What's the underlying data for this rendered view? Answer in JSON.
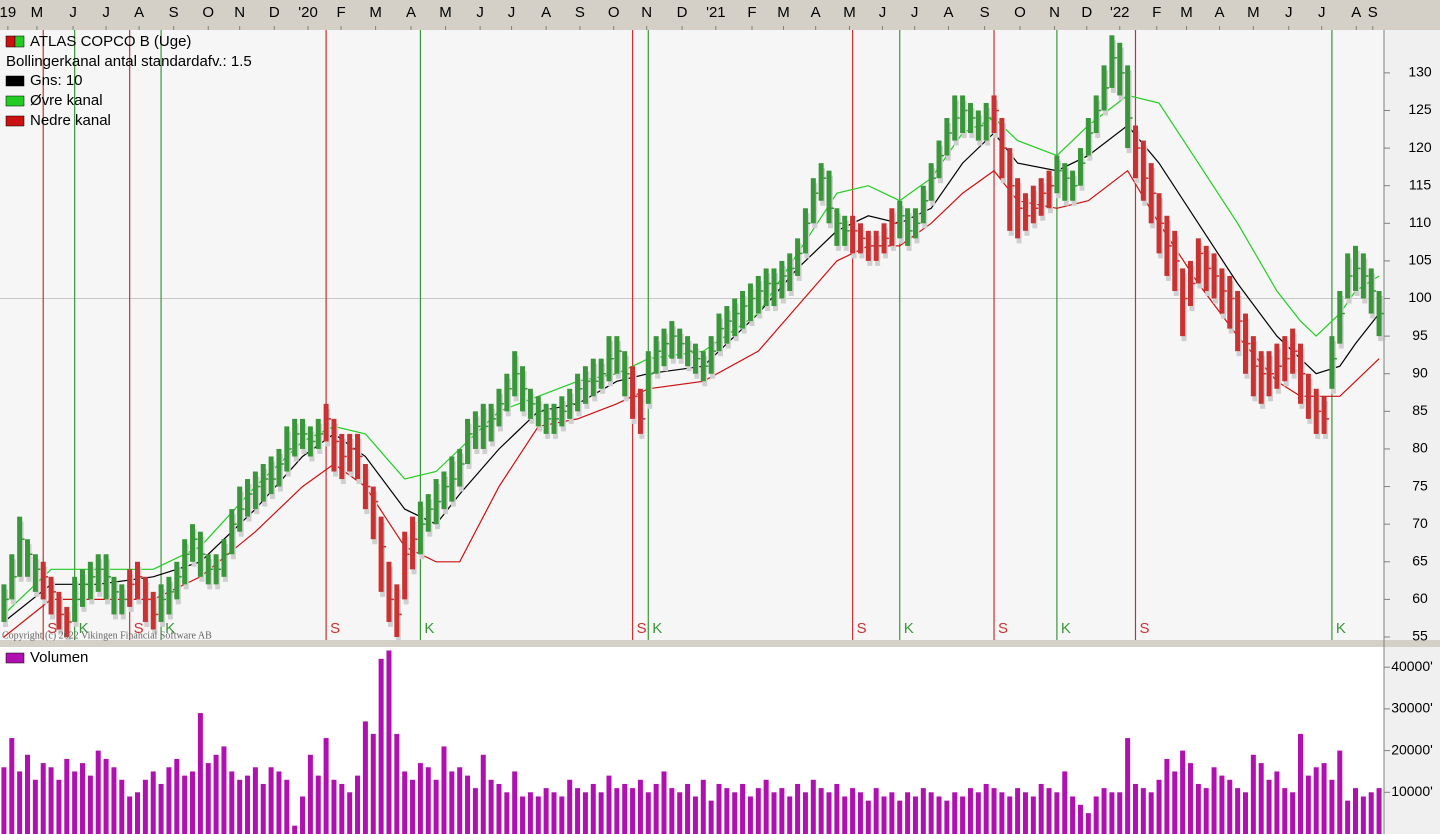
{
  "chart_data": {
    "type": "ohlc",
    "title": "ATLAS COPCO B (Uge)",
    "subtitle": "Bollingerkanal antal standardafv.: 1.5",
    "copyright": "Copyright (c) 2022 Vikingen Financial Software AB",
    "xlim": [
      -0.5,
      175.5
    ],
    "xticks": [
      {
        "value": 0.5,
        "label": "19"
      },
      {
        "value": 4.2,
        "label": "M"
      },
      {
        "value": 8.8,
        "label": "J"
      },
      {
        "value": 13,
        "label": "J"
      },
      {
        "value": 17.2,
        "label": "A"
      },
      {
        "value": 21.6,
        "label": "S"
      },
      {
        "value": 26,
        "label": "O"
      },
      {
        "value": 30,
        "label": "N"
      },
      {
        "value": 34.4,
        "label": "D"
      },
      {
        "value": 38.7,
        "label": "'20"
      },
      {
        "value": 42.9,
        "label": "F"
      },
      {
        "value": 47.3,
        "label": "M"
      },
      {
        "value": 51.8,
        "label": "A"
      },
      {
        "value": 56.2,
        "label": "M"
      },
      {
        "value": 60.6,
        "label": "J"
      },
      {
        "value": 64.6,
        "label": "J"
      },
      {
        "value": 69,
        "label": "A"
      },
      {
        "value": 73.3,
        "label": "S"
      },
      {
        "value": 77.6,
        "label": "O"
      },
      {
        "value": 81.8,
        "label": "N"
      },
      {
        "value": 86.3,
        "label": "D"
      },
      {
        "value": 90.6,
        "label": "'21"
      },
      {
        "value": 95.2,
        "label": "F"
      },
      {
        "value": 99.2,
        "label": "M"
      },
      {
        "value": 103.3,
        "label": "A"
      },
      {
        "value": 107.6,
        "label": "M"
      },
      {
        "value": 111.8,
        "label": "J"
      },
      {
        "value": 115.9,
        "label": "J"
      },
      {
        "value": 120.2,
        "label": "A"
      },
      {
        "value": 124.8,
        "label": "S"
      },
      {
        "value": 129.3,
        "label": "O"
      },
      {
        "value": 133.7,
        "label": "N"
      },
      {
        "value": 137.8,
        "label": "D"
      },
      {
        "value": 142,
        "label": "'22"
      },
      {
        "value": 146.7,
        "label": "F"
      },
      {
        "value": 150.5,
        "label": "M"
      },
      {
        "value": 154.7,
        "label": "A"
      },
      {
        "value": 159,
        "label": "M"
      },
      {
        "value": 163.5,
        "label": "J"
      },
      {
        "value": 167.7,
        "label": "J"
      },
      {
        "value": 172.1,
        "label": "A"
      },
      {
        "value": 174.2,
        "label": "S"
      }
    ],
    "ylim": [
      54.6,
      135.7
    ],
    "yticks": [
      55,
      60,
      65,
      70,
      75,
      80,
      85,
      90,
      95,
      100,
      105,
      110,
      115,
      120,
      125,
      130
    ],
    "reference_line": 100,
    "price": {
      "color": "#3a963a",
      "high": [
        62,
        66,
        71,
        68,
        66,
        65,
        63,
        61,
        59,
        63,
        64,
        65,
        66,
        66,
        63,
        62,
        64,
        65,
        63,
        61,
        62,
        63,
        65,
        68,
        70,
        69,
        66,
        66,
        68,
        72,
        75,
        76,
        77,
        78,
        79,
        80,
        83,
        84,
        84,
        83,
        84,
        86,
        84,
        82,
        82,
        82,
        78,
        75,
        71,
        65,
        62,
        69,
        71,
        73,
        74,
        76,
        77,
        79,
        80,
        84,
        85,
        86,
        86,
        88,
        90,
        93,
        91,
        88,
        87,
        86,
        86,
        87,
        88,
        90,
        91,
        92,
        92,
        95,
        95,
        93,
        91,
        88,
        93,
        95,
        96,
        97,
        96,
        95,
        94,
        93,
        95,
        98,
        99,
        100,
        101,
        102,
        103,
        104,
        104,
        105,
        106,
        108,
        112,
        116,
        118,
        117,
        112,
        111,
        111,
        110,
        109,
        109,
        110,
        112,
        113,
        112,
        112,
        115,
        118,
        121,
        124,
        127,
        127,
        126,
        125,
        126,
        127,
        124,
        120,
        116,
        114,
        115,
        116,
        117,
        119,
        118,
        117,
        120,
        124,
        127,
        131,
        135,
        134,
        131,
        123,
        121,
        118,
        114,
        111,
        109,
        104,
        105,
        108,
        107,
        106,
        104,
        103,
        101,
        98,
        95,
        93,
        93,
        94,
        95,
        96,
        94,
        90,
        88,
        87,
        95,
        101,
        106,
        107,
        106,
        104,
        101
      ],
      "low": [
        57,
        60,
        63,
        63,
        61,
        60,
        58,
        56,
        55,
        57,
        59,
        60,
        61,
        60,
        58,
        58,
        59,
        60,
        57,
        56,
        57,
        58,
        60,
        62,
        65,
        63,
        62,
        62,
        63,
        66,
        69,
        71,
        72,
        73,
        74,
        75,
        77,
        79,
        80,
        79,
        80,
        81,
        77,
        76,
        77,
        76,
        72,
        68,
        61,
        57,
        55,
        60,
        64,
        66,
        69,
        70,
        72,
        73,
        75,
        78,
        80,
        80,
        81,
        83,
        85,
        87,
        85,
        84,
        83,
        82,
        82,
        83,
        84,
        85,
        86,
        87,
        88,
        89,
        90,
        87,
        84,
        82,
        86,
        90,
        91,
        92,
        92,
        91,
        90,
        89,
        90,
        93,
        94,
        95,
        96,
        97,
        98,
        99,
        99,
        100,
        101,
        103,
        106,
        110,
        113,
        110,
        107,
        107,
        106,
        106,
        105,
        105,
        106,
        107,
        108,
        107,
        108,
        110,
        113,
        116,
        119,
        121,
        122,
        122,
        121,
        121,
        122,
        116,
        109,
        108,
        109,
        110,
        111,
        112,
        114,
        113,
        113,
        115,
        119,
        122,
        125,
        128,
        127,
        120,
        116,
        113,
        110,
        106,
        103,
        101,
        95,
        99,
        102,
        101,
        100,
        98,
        96,
        93,
        90,
        87,
        86,
        87,
        88,
        89,
        90,
        86,
        84,
        82,
        82,
        88,
        94,
        100,
        101,
        100,
        98,
        95
      ],
      "close": [
        60,
        63,
        68,
        66,
        64,
        63,
        61,
        58,
        57,
        60,
        62,
        63,
        64,
        63,
        61,
        60,
        62,
        63,
        60,
        58,
        60,
        61,
        63,
        66,
        68,
        66,
        64,
        64,
        66,
        70,
        72,
        74,
        75,
        76,
        76,
        78,
        80,
        82,
        82,
        81,
        82,
        84,
        81,
        79,
        80,
        79,
        75,
        73,
        67,
        60,
        58,
        66,
        68,
        70,
        72,
        73,
        75,
        76,
        78,
        82,
        83,
        83,
        84,
        86,
        88,
        90,
        88,
        86,
        85,
        84,
        84,
        85,
        86,
        88,
        89,
        89,
        90,
        92,
        93,
        90,
        87,
        84,
        90,
        93,
        94,
        95,
        94,
        93,
        92,
        91,
        93,
        96,
        97,
        98,
        99,
        100,
        101,
        102,
        102,
        103,
        104,
        106,
        110,
        114,
        116,
        112,
        110,
        109,
        109,
        108,
        107,
        107,
        108,
        110,
        111,
        109,
        110,
        113,
        116,
        119,
        122,
        124,
        125,
        124,
        123,
        124,
        125,
        120,
        115,
        112,
        111,
        112,
        114,
        115,
        117,
        116,
        115,
        118,
        122,
        125,
        128,
        132,
        130,
        124,
        120,
        116,
        114,
        110,
        107,
        105,
        100,
        102,
        106,
        104,
        103,
        101,
        100,
        97,
        94,
        91,
        90,
        90,
        91,
        92,
        93,
        90,
        87,
        85,
        84,
        92,
        98,
        103,
        104,
        103,
        101,
        98
      ]
    },
    "bands": {
      "x": [
        0,
        6,
        12,
        19,
        25,
        32,
        38,
        42,
        46,
        51,
        55,
        58,
        63,
        68,
        73,
        78,
        82,
        89,
        96,
        101,
        106,
        110,
        114,
        118,
        122,
        126,
        129,
        134,
        138,
        143,
        147,
        152,
        157,
        162,
        165,
        167,
        170,
        172,
        175
      ],
      "series": [
        {
          "name": "Gns: 10",
          "color": "#000000",
          "values": [
            57,
            62,
            62,
            63,
            65,
            72,
            79,
            82,
            79,
            72,
            70,
            74,
            80,
            85,
            86,
            89,
            90,
            91,
            98,
            104,
            109,
            111,
            110,
            112,
            118,
            122,
            118,
            117,
            119,
            123,
            118,
            110,
            102,
            95,
            92,
            90,
            91,
            94,
            98
          ]
        },
        {
          "name": "Øvre kanal",
          "color": "#22cc22",
          "values": [
            58,
            64,
            64,
            64,
            67,
            75,
            81,
            83,
            82,
            76,
            77,
            80,
            85,
            87,
            89,
            90,
            92,
            93,
            98,
            106,
            114,
            115,
            113,
            116,
            122,
            124,
            121,
            119,
            123,
            127,
            126,
            118,
            110,
            101,
            97,
            95,
            98,
            101,
            103
          ]
        },
        {
          "name": "Nedre kanal",
          "color": "#cc1111",
          "values": [
            55,
            60,
            60,
            60,
            63,
            69,
            75,
            78,
            75,
            67,
            65,
            65,
            75,
            83,
            84,
            86,
            88,
            89,
            93,
            99,
            105,
            107,
            107,
            110,
            114,
            117,
            113,
            112,
            113,
            117,
            110,
            102,
            95,
            89,
            87,
            87,
            87,
            89,
            92
          ]
        }
      ]
    },
    "signals": [
      {
        "x": 5,
        "label": "S",
        "color": "#c83232"
      },
      {
        "x": 9,
        "label": "K",
        "color": "#3a963a"
      },
      {
        "x": 16,
        "label": "S",
        "color": "#c83232"
      },
      {
        "x": 20,
        "label": "K",
        "color": "#3a963a"
      },
      {
        "x": 41,
        "label": "S",
        "color": "#c83232"
      },
      {
        "x": 53,
        "label": "K",
        "color": "#3a963a"
      },
      {
        "x": 80,
        "label": "S",
        "color": "#c83232"
      },
      {
        "x": 82,
        "label": "K",
        "color": "#3a963a"
      },
      {
        "x": 108,
        "label": "S",
        "color": "#c83232"
      },
      {
        "x": 114,
        "label": "K",
        "color": "#3a963a"
      },
      {
        "x": 126,
        "label": "S",
        "color": "#c83232"
      },
      {
        "x": 134,
        "label": "K",
        "color": "#3a963a"
      },
      {
        "x": 144,
        "label": "S",
        "color": "#c83232"
      },
      {
        "x": 169,
        "label": "K",
        "color": "#3a963a"
      }
    ],
    "volume": {
      "name": "Volumen",
      "color": "#b010b0",
      "ylim": [
        0,
        44600
      ],
      "yticks": [
        {
          "value": 10000,
          "label": "10000'"
        },
        {
          "value": 20000,
          "label": "20000'"
        },
        {
          "value": 30000,
          "label": "30000'"
        },
        {
          "value": 40000,
          "label": "40000'"
        }
      ],
      "values": [
        16000,
        23000,
        15000,
        19000,
        13000,
        17000,
        16000,
        13000,
        18000,
        15000,
        17000,
        14000,
        20000,
        18000,
        16000,
        13000,
        9000,
        10000,
        13000,
        15000,
        12000,
        16000,
        18000,
        14000,
        15000,
        29000,
        17000,
        19000,
        21000,
        15000,
        13000,
        14000,
        16000,
        12000,
        16000,
        15000,
        13000,
        2000,
        9000,
        19000,
        14000,
        23000,
        13000,
        12000,
        10000,
        14000,
        27000,
        24000,
        42000,
        44000,
        24000,
        15000,
        13000,
        17000,
        16000,
        13000,
        21000,
        15000,
        16000,
        14000,
        11000,
        19000,
        13000,
        12000,
        10000,
        15000,
        9000,
        10000,
        9000,
        11000,
        10000,
        9000,
        13000,
        11000,
        10000,
        12000,
        10000,
        14000,
        11000,
        12000,
        11000,
        13000,
        10000,
        12000,
        15000,
        11000,
        10000,
        12000,
        9000,
        13000,
        8000,
        12000,
        11000,
        10000,
        12000,
        9000,
        11000,
        13000,
        10000,
        11000,
        9000,
        12000,
        10000,
        13000,
        11000,
        10000,
        12000,
        9000,
        11000,
        10000,
        8000,
        11000,
        9000,
        10000,
        8000,
        10000,
        9000,
        11000,
        10000,
        9000,
        8000,
        10000,
        9000,
        11000,
        10000,
        12000,
        11000,
        10000,
        9000,
        11000,
        10000,
        9000,
        12000,
        11000,
        10000,
        15000,
        9000,
        7000,
        5000,
        9000,
        11000,
        10000,
        10000,
        23000,
        12000,
        11000,
        10000,
        13000,
        18000,
        15000,
        20000,
        17000,
        12000,
        11000,
        16000,
        14000,
        13000,
        11000,
        10000,
        19000,
        17000,
        13000,
        15000,
        11000,
        10000,
        24000,
        14000,
        16000,
        17000,
        13000,
        20000,
        8000,
        11000,
        9000,
        10000,
        11000
      ]
    }
  }
}
